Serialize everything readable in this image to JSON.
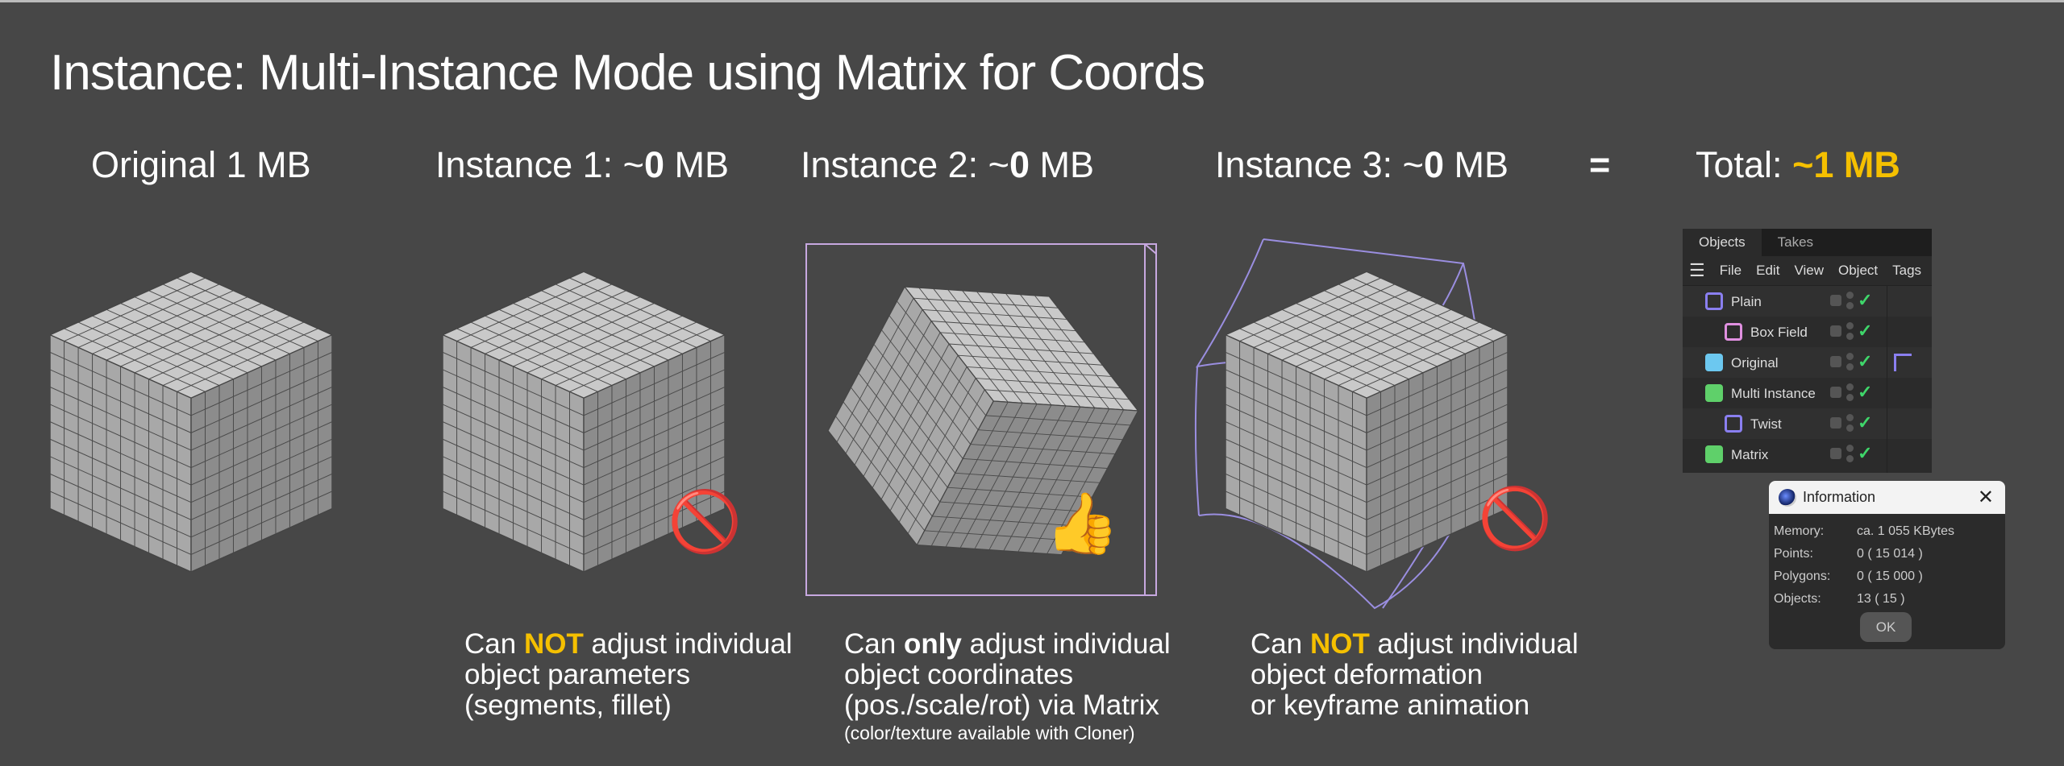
{
  "title": "Instance: Multi-Instance Mode using Matrix for Coords",
  "columns": [
    {
      "pre": "Original 1 MB",
      "bold": "",
      "post": ""
    },
    {
      "pre": "Instance 1: ~",
      "bold": "0",
      "post": " MB"
    },
    {
      "pre": "Instance 2: ~",
      "bold": "0",
      "post": " MB"
    },
    {
      "pre": "Instance 3: ~",
      "bold": "0",
      "post": " MB"
    }
  ],
  "equals": "=",
  "total": {
    "label": "Total: ",
    "value": "~1 MB"
  },
  "captions": [
    {
      "l1a": "Can ",
      "l1b": "NOT",
      "l1c": " adjust individual",
      "l2": "object parameters",
      "l3": "(segments, fillet)",
      "small": ""
    },
    {
      "l1a": "Can ",
      "l1b": "only",
      "l1c": " adjust individual",
      "l2": "object coordinates",
      "l3": "(pos./scale/rot) via Matrix",
      "small": "(color/texture available with Cloner)"
    },
    {
      "l1a": "Can ",
      "l1b": "NOT",
      "l1c": " adjust individual",
      "l2": "object deformation",
      "l3": "or keyframe animation",
      "small": ""
    }
  ],
  "icons": {
    "no1": "🚫",
    "thumb": "👍",
    "no2": "🚫"
  },
  "colors": {
    "accent": "#f5c000",
    "check": "#3fd66a",
    "deformer": "#9a8ee0"
  },
  "objects_panel": {
    "tabs": [
      "Objects",
      "Takes"
    ],
    "menu": [
      "File",
      "Edit",
      "View",
      "Object",
      "Tags"
    ],
    "rows": [
      {
        "name": "Plain",
        "icon": "null-object-icon"
      },
      {
        "name": "Box Field",
        "icon": "box-field-icon"
      },
      {
        "name": "Original",
        "icon": "cube-icon"
      },
      {
        "name": "Multi Instance",
        "icon": "instance-icon"
      },
      {
        "name": "Twist",
        "icon": "twist-deformer-icon"
      },
      {
        "name": "Matrix",
        "icon": "matrix-icon"
      }
    ]
  },
  "info_dialog": {
    "title": "Information",
    "memory_label": "Memory:",
    "memory": "ca. 1 055 KBytes",
    "points_label": "Points:",
    "points": "0 ( 15 014 )",
    "polygons_label": "Polygons:",
    "polygons": "0 ( 15 000 )",
    "objects_label": "Objects:",
    "objects": "13 ( 15 )",
    "ok": "OK"
  }
}
